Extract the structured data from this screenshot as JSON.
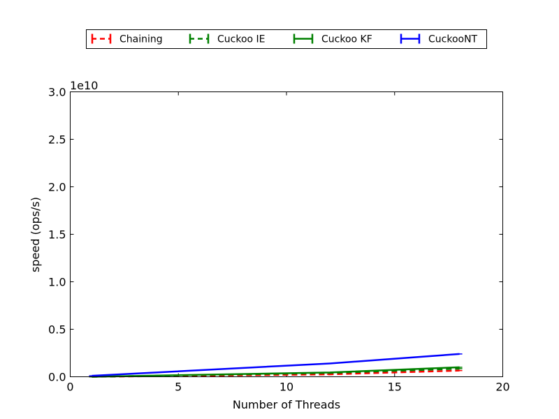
{
  "chart_data": {
    "type": "line",
    "xlabel": "Number of Threads",
    "ylabel": "speed (ops/s)",
    "y_offset_label": "1e10",
    "xlim": [
      0,
      20
    ],
    "ylim": [
      0,
      3.0
    ],
    "y_scale_factor": 10000000000.0,
    "xticks": [
      0,
      5,
      10,
      15,
      20
    ],
    "xtick_labels": [
      "0",
      "5",
      "10",
      "15",
      "20"
    ],
    "yticks": [
      0,
      0.5,
      1.0,
      1.5,
      2.0,
      2.5,
      3.0
    ],
    "ytick_labels": [
      "0.0",
      "0.5",
      "1.0",
      "1.5",
      "2.0",
      "2.5",
      "3.0"
    ],
    "grid": false,
    "legend_position": "top-center-outside",
    "x": [
      1,
      12,
      18
    ],
    "series": [
      {
        "name": "Chaining",
        "color": "#ff0000",
        "dashed": true,
        "values": [
          0.0,
          0.025,
          0.065
        ]
      },
      {
        "name": "Cuckoo IE",
        "color": "#008000",
        "dashed": true,
        "values": [
          0.0,
          0.04,
          0.085
        ]
      },
      {
        "name": "Cuckoo KF",
        "color": "#008000",
        "dashed": false,
        "values": [
          0.0,
          0.045,
          0.1
        ]
      },
      {
        "name": "CuckooNT",
        "color": "#0000ff",
        "dashed": false,
        "values": [
          0.01,
          0.14,
          0.24
        ]
      }
    ]
  }
}
